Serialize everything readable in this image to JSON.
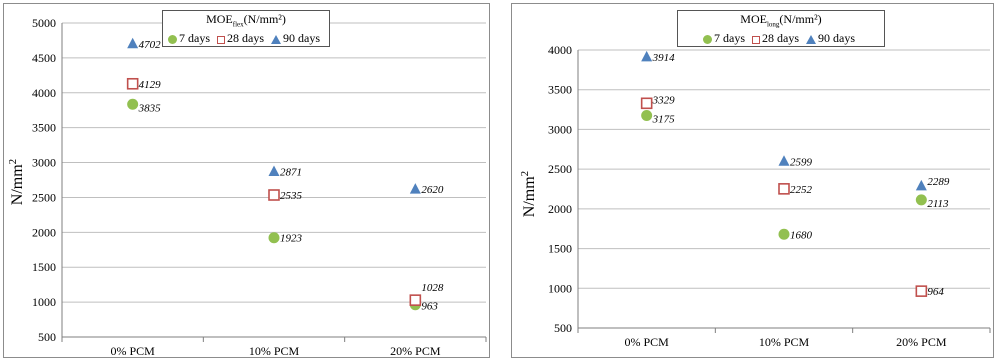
{
  "chart_data": [
    {
      "type": "scatter",
      "title": "MOE",
      "title_subscript": "flex",
      "title_unit": "(N/mm²)",
      "ylabel": "N/mm²",
      "xlabel": "",
      "categories": [
        "0% PCM",
        "10% PCM",
        "20% PCM"
      ],
      "ylim": [
        500,
        5000
      ],
      "yticks": [
        "500",
        "1000",
        "1500",
        "2000",
        "2500",
        "3000",
        "3500",
        "4000",
        "4500",
        "5000"
      ],
      "grid": true,
      "legend_position": "top-center",
      "series": [
        {
          "name": "7 days",
          "marker": "circle",
          "color": "#92c050",
          "values": [
            3835,
            1923,
            963
          ],
          "labels": [
            "3835",
            "1923",
            "963"
          ]
        },
        {
          "name": "28 days",
          "marker": "square",
          "color": "#c0504d",
          "values": [
            4129,
            2535,
            1028
          ],
          "labels": [
            "4129",
            "2535",
            "1028"
          ]
        },
        {
          "name": "90 days",
          "marker": "triangle",
          "color": "#4f81bd",
          "values": [
            4702,
            2871,
            2620
          ],
          "labels": [
            "4702",
            "2871",
            "2620"
          ]
        }
      ]
    },
    {
      "type": "scatter",
      "title": "MOE",
      "title_subscript": "long",
      "title_unit": "(N/mm²)",
      "ylabel": "N/mm²",
      "xlabel": "",
      "categories": [
        "0% PCM",
        "10% PCM",
        "20% PCM"
      ],
      "ylim": [
        500,
        4000
      ],
      "yticks": [
        "500",
        "1000",
        "1500",
        "2000",
        "2500",
        "3000",
        "3500",
        "4000"
      ],
      "grid": true,
      "legend_position": "top-center",
      "series": [
        {
          "name": "7 days",
          "marker": "circle",
          "color": "#92c050",
          "values": [
            3175,
            1680,
            2113
          ],
          "labels": [
            "3175",
            "1680",
            "2113"
          ]
        },
        {
          "name": "28 days",
          "marker": "square",
          "color": "#c0504d",
          "values": [
            3329,
            2252,
            964
          ],
          "labels": [
            "3329",
            "2252",
            "964"
          ]
        },
        {
          "name": "90 days",
          "marker": "triangle",
          "color": "#4f81bd",
          "values": [
            3914,
            2599,
            2289
          ],
          "labels": [
            "3914",
            "2599",
            "2289"
          ]
        }
      ]
    }
  ]
}
